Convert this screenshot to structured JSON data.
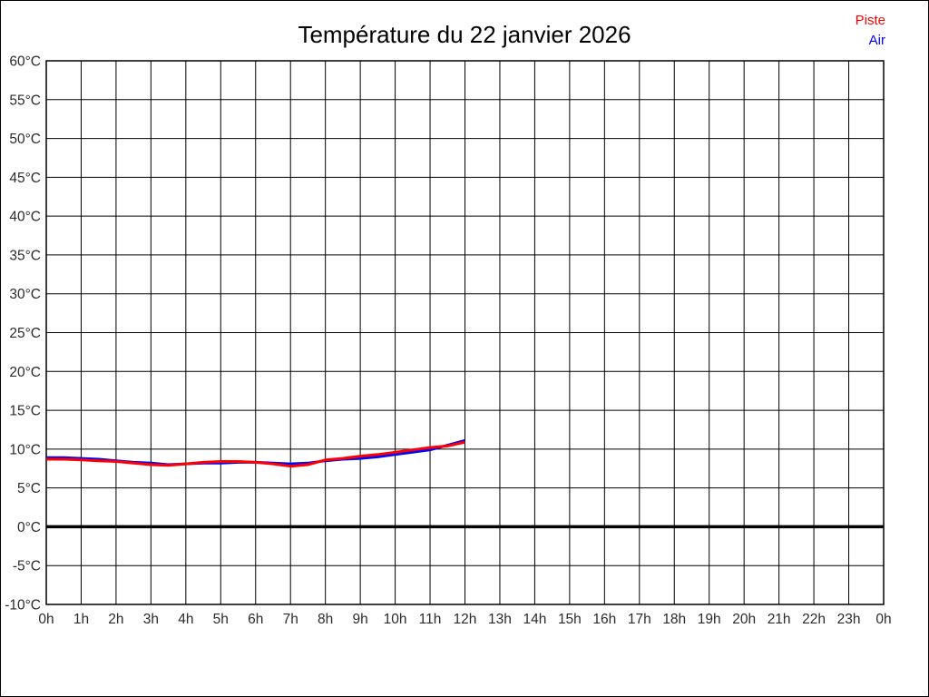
{
  "title": "Température du 22 janvier 2026",
  "chart_data": {
    "type": "line",
    "title": "Température du 22 janvier 2026",
    "xlabel": "",
    "ylabel": "",
    "x_unit": "h",
    "y_unit": "°C",
    "xlim": [
      0,
      24
    ],
    "ylim": [
      -10,
      60
    ],
    "x_step": 1,
    "y_step": 5,
    "grid": true,
    "zero_line_bold": true,
    "legend_position": "top-right",
    "x_tick_labels": [
      "0h",
      "1h",
      "2h",
      "3h",
      "4h",
      "5h",
      "6h",
      "7h",
      "8h",
      "9h",
      "10h",
      "11h",
      "12h",
      "13h",
      "14h",
      "15h",
      "16h",
      "17h",
      "18h",
      "19h",
      "20h",
      "21h",
      "22h",
      "23h",
      "0h"
    ],
    "y_tick_labels": [
      "60°C",
      "55°C",
      "50°C",
      "45°C",
      "40°C",
      "35°C",
      "30°C",
      "25°C",
      "20°C",
      "15°C",
      "10°C",
      "5°C",
      "0°C",
      "-5°C",
      "-10°C"
    ],
    "x": [
      0,
      0.5,
      1,
      1.5,
      2,
      2.5,
      3,
      3.5,
      4,
      4.5,
      5,
      5.5,
      6,
      6.5,
      7,
      7.5,
      8,
      8.5,
      9,
      9.5,
      10,
      10.5,
      11,
      11.5,
      12
    ],
    "series": [
      {
        "name": "Air",
        "color": "#0000ff",
        "values": [
          8.9,
          8.9,
          8.8,
          8.7,
          8.5,
          8.3,
          8.2,
          8.0,
          8.1,
          8.2,
          8.2,
          8.3,
          8.3,
          8.2,
          8.1,
          8.2,
          8.5,
          8.7,
          8.8,
          9.0,
          9.3,
          9.6,
          9.9,
          10.5,
          11.1
        ]
      },
      {
        "name": "Piste",
        "color": "#ff0000",
        "values": [
          8.7,
          8.7,
          8.6,
          8.5,
          8.4,
          8.2,
          8.0,
          7.9,
          8.1,
          8.3,
          8.4,
          8.4,
          8.3,
          8.1,
          7.8,
          8.0,
          8.6,
          8.8,
          9.1,
          9.3,
          9.6,
          9.9,
          10.2,
          10.4,
          10.9
        ]
      }
    ],
    "colors": {
      "grid": "#000000",
      "zero_line": "#000000",
      "border": "#000000"
    }
  }
}
